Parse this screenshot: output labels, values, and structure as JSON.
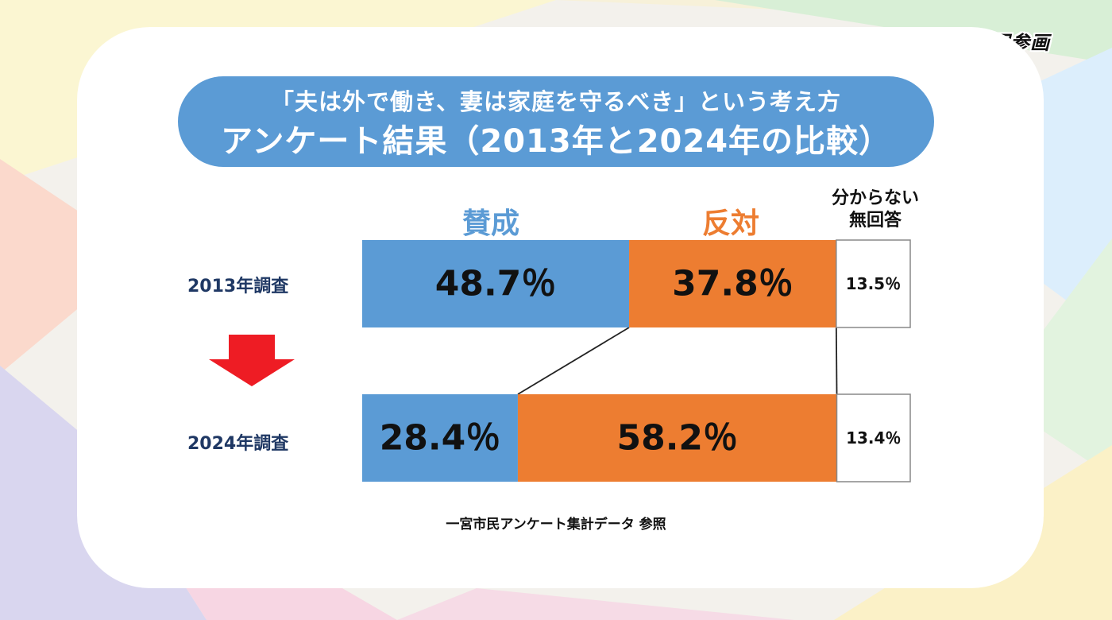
{
  "header": {
    "corner_title": "みんなで考えよう！ 男女共同参画",
    "title_line1": "「夫は外で働き、妻は家庭を守るべき」という考え方",
    "title_line2": "アンケート結果（2013年と2024年の比較）"
  },
  "colors": {
    "agree": "#5b9bd5",
    "disagree": "#ed7d31",
    "unknown": "#ffffff"
  },
  "chart_data": {
    "type": "bar",
    "orientation": "horizontal-stacked-100",
    "categories": [
      "2013年調査",
      "2024年調査"
    ],
    "series": [
      {
        "name": "賛成",
        "values": [
          48.7,
          28.4
        ],
        "labels": [
          "48.7％",
          "28.4％"
        ]
      },
      {
        "name": "反対",
        "values": [
          37.8,
          58.2
        ],
        "labels": [
          "37.8％",
          "58.2％"
        ]
      },
      {
        "name": "分からない 無回答",
        "values": [
          13.5,
          13.4
        ],
        "labels": [
          "13.5％",
          "13.4％"
        ]
      }
    ],
    "legend": {
      "agree": "賛成",
      "disagree": "反対",
      "unknown_line1": "分からない",
      "unknown_line2": "無回答"
    },
    "xlim": [
      0,
      100
    ]
  },
  "footer": {
    "source": "一宮市民アンケート集計データ 参照"
  }
}
